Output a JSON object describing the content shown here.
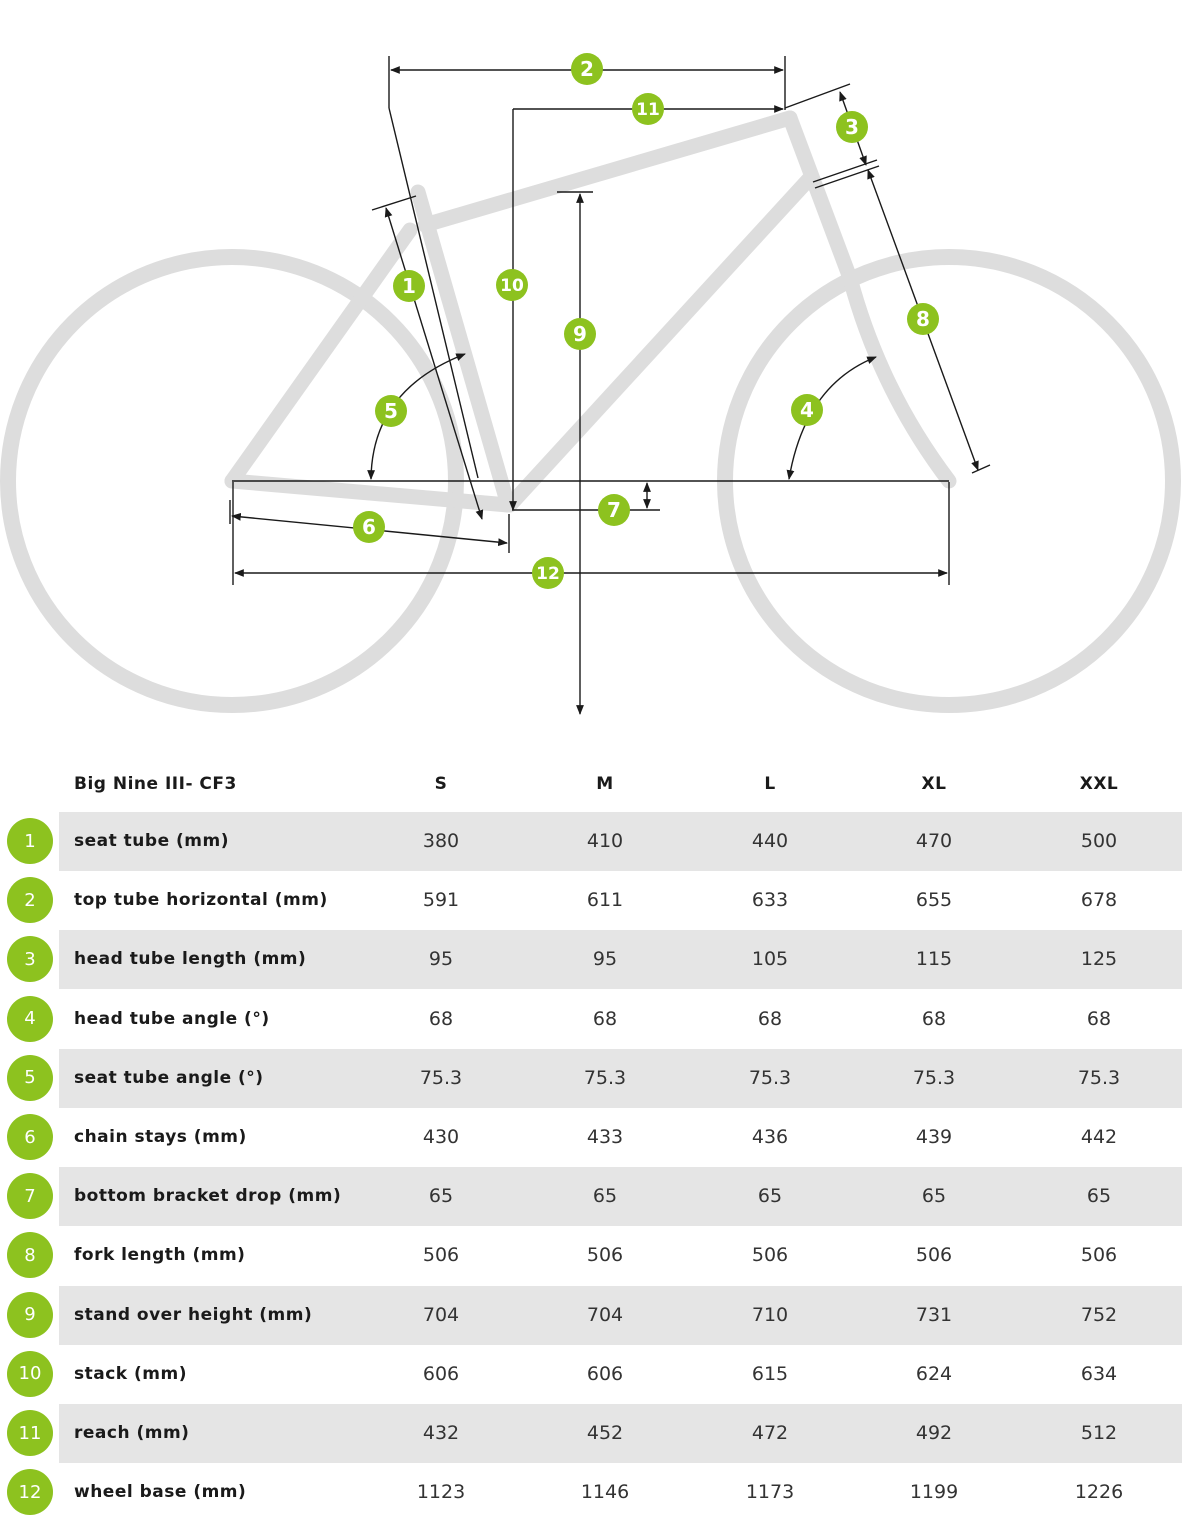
{
  "diagram": {
    "badges": [
      "1",
      "2",
      "3",
      "4",
      "5",
      "6",
      "7",
      "8",
      "9",
      "10",
      "11",
      "12"
    ],
    "accent_color": "#8dc21f",
    "frame_color": "#dddddd",
    "line_color": "#1a1a1a"
  },
  "table": {
    "model": "Big Nine III- CF3",
    "sizes": [
      "S",
      "M",
      "L",
      "XL",
      "XXL"
    ],
    "rows": [
      {
        "num": "1",
        "label": "seat tube (mm)",
        "values": [
          "380",
          "410",
          "440",
          "470",
          "500"
        ]
      },
      {
        "num": "2",
        "label": "top tube horizontal (mm)",
        "values": [
          "591",
          "611",
          "633",
          "655",
          "678"
        ]
      },
      {
        "num": "3",
        "label": "head tube length (mm)",
        "values": [
          "95",
          "95",
          "105",
          "115",
          "125"
        ]
      },
      {
        "num": "4",
        "label": "head tube angle (°)",
        "values": [
          "68",
          "68",
          "68",
          "68",
          "68"
        ]
      },
      {
        "num": "5",
        "label": "seat tube angle (°)",
        "values": [
          "75.3",
          "75.3",
          "75.3",
          "75.3",
          "75.3"
        ]
      },
      {
        "num": "6",
        "label": "chain stays (mm)",
        "values": [
          "430",
          "433",
          "436",
          "439",
          "442"
        ]
      },
      {
        "num": "7",
        "label": "bottom bracket drop (mm)",
        "values": [
          "65",
          "65",
          "65",
          "65",
          "65"
        ]
      },
      {
        "num": "8",
        "label": "fork length (mm)",
        "values": [
          "506",
          "506",
          "506",
          "506",
          "506"
        ]
      },
      {
        "num": "9",
        "label": "stand over height (mm)",
        "values": [
          "704",
          "704",
          "710",
          "731",
          "752"
        ]
      },
      {
        "num": "10",
        "label": "stack (mm)",
        "values": [
          "606",
          "606",
          "615",
          "624",
          "634"
        ]
      },
      {
        "num": "11",
        "label": "reach (mm)",
        "values": [
          "432",
          "452",
          "472",
          "492",
          "512"
        ]
      },
      {
        "num": "12",
        "label": "wheel base (mm)",
        "values": [
          "1123",
          "1146",
          "1173",
          "1199",
          "1226"
        ]
      }
    ]
  }
}
